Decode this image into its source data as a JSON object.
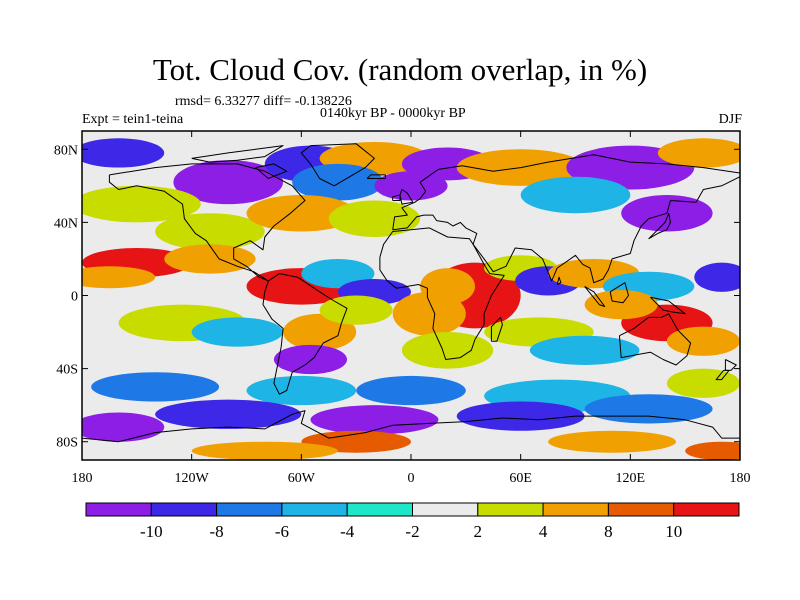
{
  "title": "Tot. Cloud Cov. (random overlap, in %)",
  "stats": "rmsd= 6.33277 diff= -0.138226",
  "period": "0140kyr BP - 0000kyr BP",
  "experiment": "Expt = tein1-teina",
  "season": "DJF",
  "map": {
    "lon_range": [
      -180,
      180
    ],
    "lat_range": [
      -90,
      90
    ],
    "lon_ticks": [
      {
        "value": -180,
        "label": "180"
      },
      {
        "value": -120,
        "label": "120W"
      },
      {
        "value": -60,
        "label": "60W"
      },
      {
        "value": 0,
        "label": "0"
      },
      {
        "value": 60,
        "label": "60E"
      },
      {
        "value": 120,
        "label": "120E"
      },
      {
        "value": 180,
        "label": "180"
      }
    ],
    "lat_ticks": [
      {
        "value": 80,
        "label": "80N"
      },
      {
        "value": 40,
        "label": "40N"
      },
      {
        "value": 0,
        "label": "0"
      },
      {
        "value": -40,
        "label": "40S"
      },
      {
        "value": -80,
        "label": "80S"
      }
    ]
  },
  "colorbar": {
    "colors": [
      "#8c1ee6",
      "#3c28e6",
      "#1e78e6",
      "#1eb4e6",
      "#1ee6c8",
      "#ebebeb",
      "#c8dc00",
      "#f0a000",
      "#e65a00",
      "#e61414"
    ],
    "boundaries": [
      {
        "value": -10,
        "label": "-10"
      },
      {
        "value": -8,
        "label": "-8"
      },
      {
        "value": -6,
        "label": "-6"
      },
      {
        "value": -4,
        "label": "-4"
      },
      {
        "value": -2,
        "label": "-2"
      },
      {
        "value": 2,
        "label": "2"
      },
      {
        "value": 4,
        "label": "4"
      },
      {
        "value": 8,
        "label": "8"
      },
      {
        "value": 10,
        "label": "10"
      }
    ]
  }
}
